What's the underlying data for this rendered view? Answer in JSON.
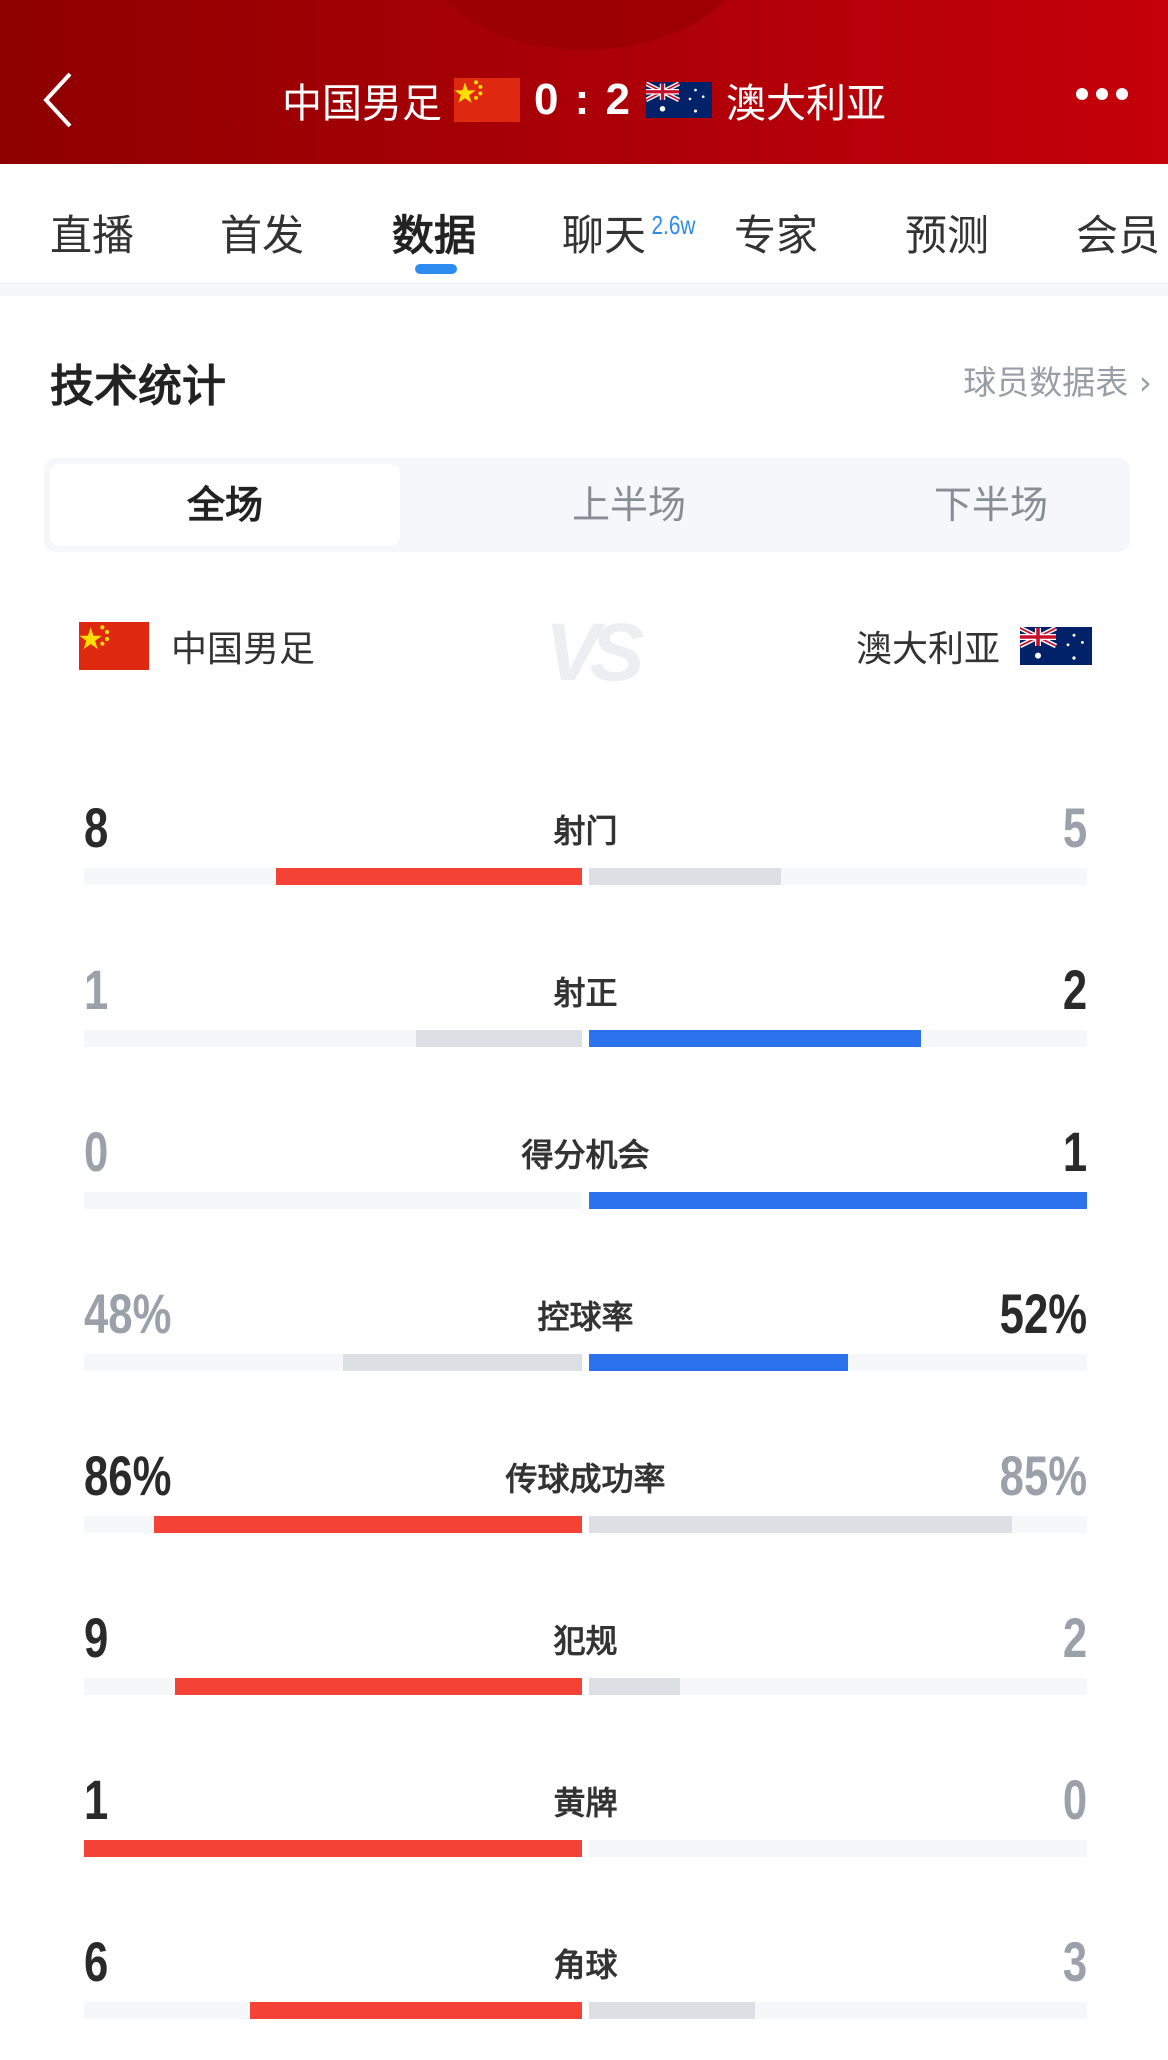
{
  "header": {
    "home_team": "中国男足",
    "away_team": "澳大利亚",
    "score": "0 : 2"
  },
  "tabs": [
    {
      "label": "直播"
    },
    {
      "label": "首发"
    },
    {
      "label": "数据",
      "active": true
    },
    {
      "label": "聊天",
      "badge": "2.6w"
    },
    {
      "label": "专家"
    },
    {
      "label": "预测"
    },
    {
      "label": "会员"
    }
  ],
  "section": {
    "title": "技术统计",
    "link": "球员数据表"
  },
  "periods": [
    "全场",
    "上半场",
    "下半场"
  ],
  "teams": {
    "home": "中国男足",
    "vs": "VS",
    "away": "澳大利亚"
  },
  "colors": {
    "home": "#f44336",
    "away": "#2b72ec",
    "loser": "#dcdfe4",
    "track": "#f6f7f9",
    "lead_text": "#2a2a2a",
    "trail_text": "#9ba1ab"
  },
  "stats": [
    {
      "label": "射门",
      "home": "8",
      "away": "5",
      "home_frac": 0.615,
      "away_frac": 0.385
    },
    {
      "label": "射正",
      "home": "1",
      "away": "2",
      "home_frac": 0.333,
      "away_frac": 0.667
    },
    {
      "label": "得分机会",
      "home": "0",
      "away": "1",
      "home_frac": 0,
      "away_frac": 1
    },
    {
      "label": "控球率",
      "home": "48%",
      "away": "52%",
      "home_frac": 0.48,
      "away_frac": 0.52
    },
    {
      "label": "传球成功率",
      "home": "86%",
      "away": "85%",
      "home_frac": 0.86,
      "away_frac": 0.85
    },
    {
      "label": "犯规",
      "home": "9",
      "away": "2",
      "home_frac": 0.818,
      "away_frac": 0.182
    },
    {
      "label": "黄牌",
      "home": "1",
      "away": "0",
      "home_frac": 1,
      "away_frac": 0
    },
    {
      "label": "角球",
      "home": "6",
      "away": "3",
      "home_frac": 0.667,
      "away_frac": 0.333
    }
  ]
}
